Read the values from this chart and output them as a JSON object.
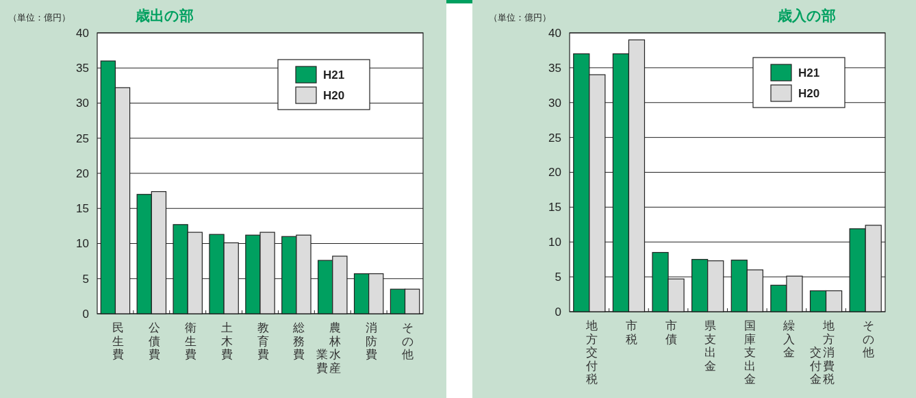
{
  "chart_data": [
    {
      "type": "bar",
      "title": "歳出の部",
      "ylabel": "（単位：億円）",
      "categories": [
        "民生費",
        "公債費",
        "衛生費",
        "土木費",
        "教育費",
        "総務費",
        "農林水産業費",
        "消防費",
        "その他"
      ],
      "series": [
        {
          "name": "H21",
          "color": "#00a060",
          "values": [
            36,
            17,
            12.7,
            11.3,
            11.2,
            11,
            7.6,
            5.7,
            3.5
          ]
        },
        {
          "name": "H20",
          "color": "#dcdcdc",
          "values": [
            32.2,
            17.4,
            11.6,
            10.1,
            11.6,
            11.2,
            8.2,
            5.7,
            3.5
          ]
        }
      ],
      "ylim": [
        0,
        40
      ],
      "yticks": [
        0,
        5,
        10,
        15,
        20,
        25,
        30,
        35,
        40
      ],
      "grid": "y",
      "legend": "top right"
    },
    {
      "type": "bar",
      "title": "歳入の部",
      "ylabel": "（単位：億円）",
      "categories": [
        "地方交付税",
        "市税",
        "市債",
        "県支出金",
        "国庫支出金",
        "繰入金",
        "地方消費税交付金",
        "その他"
      ],
      "series": [
        {
          "name": "H21",
          "color": "#00a060",
          "values": [
            37,
            37,
            8.5,
            7.5,
            7.4,
            3.8,
            3.0,
            11.9
          ]
        },
        {
          "name": "H20",
          "color": "#dcdcdc",
          "values": [
            34,
            39,
            4.7,
            7.3,
            6.0,
            5.1,
            3.0,
            12.4
          ]
        }
      ],
      "ylim": [
        0,
        40
      ],
      "yticks": [
        0,
        5,
        10,
        15,
        20,
        25,
        30,
        35,
        40
      ],
      "grid": "y",
      "legend": "top right"
    }
  ]
}
